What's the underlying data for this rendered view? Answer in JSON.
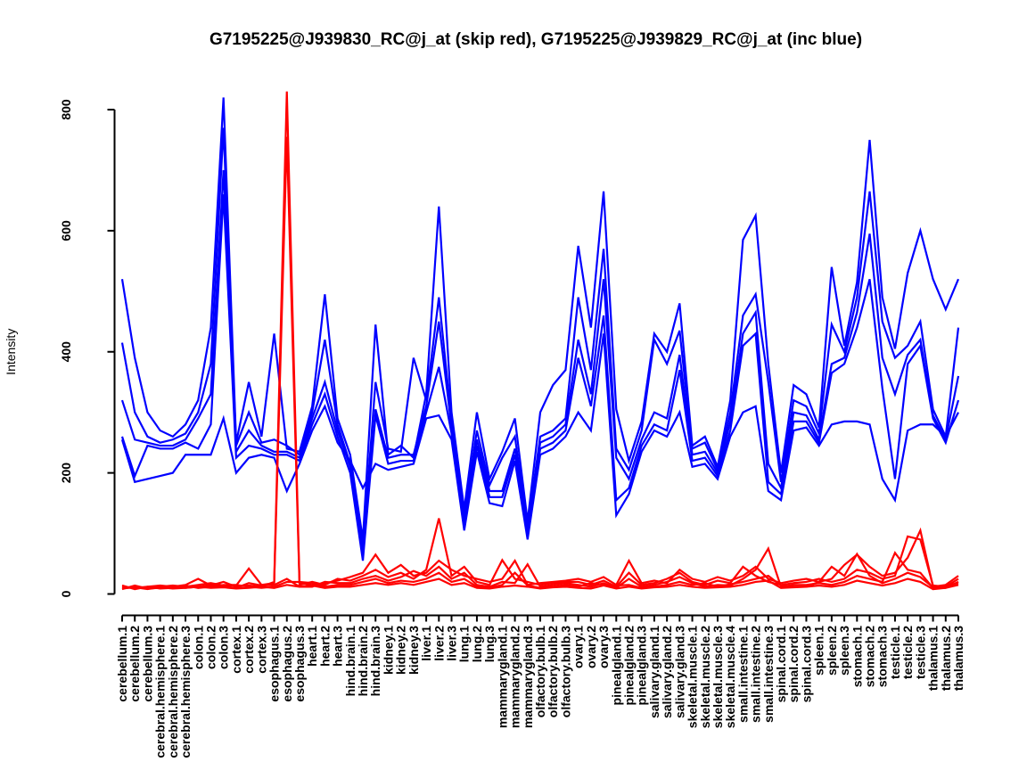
{
  "title": "G7195225@J939830_RC@j_at (skip red), G7195225@J939829_RC@j_at (inc blue)",
  "chart_data": {
    "type": "line",
    "title": "G7195225@J939830_RC@j_at (skip red), G7195225@J939829_RC@j_at (inc blue)",
    "xlabel": "",
    "ylabel": "Intensity",
    "ylim": [
      0,
      800
    ],
    "yticks": [
      0,
      200,
      400,
      600,
      800
    ],
    "grid": false,
    "legend_position": "none",
    "legend_note": "legend encoded in title: skip probe = red lines, inc probe = blue lines",
    "colors": {
      "skip": "#ff0000",
      "inc": "#0000ff"
    },
    "categories": [
      "cerebellum.1",
      "cerebellum.2",
      "cerebellum.3",
      "cerebral.hemisphere.1",
      "cerebral.hemisphere.2",
      "cerebral.hemisphere.3",
      "colon.1",
      "colon.2",
      "colon.3",
      "cortex.1",
      "cortex.2",
      "cortex.3",
      "esophagus.1",
      "esophagus.2",
      "esophagus.3",
      "heart.1",
      "heart.2",
      "heart.3",
      "hind.brain.1",
      "hind.brain.2",
      "hind.brain.3",
      "kidney.1",
      "kidney.2",
      "kidney.3",
      "liver.1",
      "liver.2",
      "liver.3",
      "lung.1",
      "lung.2",
      "lung.3",
      "mammarygland.1",
      "mammarygland.2",
      "mammarygland.3",
      "olfactory.bulb.1",
      "olfactory.bulb.2",
      "olfactory.bulb.3",
      "ovary.1",
      "ovary.2",
      "ovary.3",
      "pinealgland.1",
      "pinealgland.2",
      "pinealgland.3",
      "salivary.gland.1",
      "salivary.gland.2",
      "salivary.gland.3",
      "skeletal.muscle.1",
      "skeletal.muscle.2",
      "skeletal.muscle.3",
      "skeletal.muscle.4",
      "small.intestine.1",
      "small.intestine.2",
      "small.intestine.3",
      "spinal.cord.1",
      "spinal.cord.2",
      "spinal.cord.3",
      "spleen.1",
      "spleen.2",
      "spleen.3",
      "stomach.1",
      "stomach.2",
      "stomach.3",
      "testicle.1",
      "testicle.2",
      "testicle.3",
      "thalamus.1",
      "thalamus.2",
      "thalamus.3"
    ],
    "series": [
      {
        "name": "inc-line-1",
        "probe": "G7195225@J939829_RC@j_at",
        "color": "#0000ff",
        "values": [
          520,
          390,
          300,
          270,
          260,
          280,
          320,
          440,
          820,
          250,
          350,
          260,
          430,
          240,
          235,
          310,
          495,
          290,
          230,
          90,
          445,
          230,
          245,
          225,
          330,
          640,
          300,
          140,
          300,
          190,
          235,
          290,
          120,
          300,
          345,
          370,
          575,
          440,
          665,
          305,
          220,
          285,
          430,
          400,
          480,
          245,
          260,
          210,
          320,
          585,
          625,
          380,
          200,
          345,
          330,
          275,
          540,
          410,
          515,
          750,
          490,
          405,
          530,
          600,
          520,
          470,
          520
        ]
      },
      {
        "name": "inc-line-2",
        "probe": "G7195225@J939829_RC@j_at",
        "color": "#0000ff",
        "values": [
          415,
          300,
          260,
          250,
          255,
          265,
          300,
          380,
          770,
          245,
          300,
          250,
          255,
          245,
          230,
          300,
          420,
          280,
          215,
          75,
          350,
          240,
          235,
          390,
          320,
          490,
          285,
          130,
          270,
          180,
          225,
          260,
          110,
          260,
          270,
          290,
          490,
          370,
          570,
          240,
          205,
          270,
          420,
          380,
          435,
          240,
          250,
          205,
          300,
          460,
          495,
          350,
          185,
          320,
          310,
          265,
          445,
          400,
          490,
          665,
          450,
          390,
          410,
          450,
          305,
          260,
          440
        ]
      },
      {
        "name": "inc-line-3",
        "probe": "G7195225@J939829_RC@j_at",
        "color": "#0000ff",
        "values": [
          320,
          255,
          250,
          245,
          245,
          255,
          290,
          330,
          700,
          235,
          270,
          245,
          235,
          235,
          225,
          290,
          350,
          270,
          210,
          65,
          305,
          225,
          230,
          230,
          310,
          450,
          275,
          120,
          255,
          170,
          170,
          240,
          100,
          250,
          260,
          280,
          420,
          330,
          520,
          225,
          190,
          255,
          300,
          290,
          395,
          230,
          235,
          200,
          285,
          430,
          465,
          215,
          175,
          300,
          295,
          255,
          380,
          390,
          465,
          595,
          390,
          330,
          395,
          420,
          295,
          255,
          360
        ]
      },
      {
        "name": "inc-line-4",
        "probe": "G7195225@J939829_RC@j_at",
        "color": "#0000ff",
        "values": [
          260,
          195,
          245,
          240,
          240,
          250,
          240,
          280,
          660,
          225,
          245,
          240,
          230,
          230,
          220,
          280,
          330,
          260,
          200,
          55,
          295,
          215,
          220,
          220,
          300,
          375,
          265,
          110,
          245,
          160,
          160,
          230,
          95,
          240,
          250,
          270,
          390,
          310,
          460,
          155,
          175,
          245,
          280,
          270,
          370,
          220,
          225,
          195,
          270,
          410,
          430,
          185,
          165,
          285,
          285,
          250,
          365,
          380,
          440,
          520,
          340,
          190,
          380,
          410,
          290,
          250,
          320
        ]
      },
      {
        "name": "inc-line-5",
        "probe": "G7195225@J939829_RC@j_at",
        "color": "#0000ff",
        "values": [
          255,
          185,
          190,
          195,
          200,
          230,
          230,
          230,
          290,
          200,
          225,
          230,
          225,
          170,
          215,
          270,
          310,
          250,
          220,
          175,
          215,
          205,
          210,
          215,
          290,
          295,
          255,
          105,
          235,
          150,
          145,
          220,
          90,
          230,
          240,
          260,
          300,
          270,
          430,
          130,
          165,
          235,
          270,
          260,
          300,
          210,
          215,
          190,
          260,
          300,
          310,
          170,
          155,
          270,
          275,
          245,
          280,
          285,
          285,
          280,
          190,
          155,
          270,
          280,
          280,
          260,
          300
        ]
      },
      {
        "name": "skip-line-1",
        "probe": "G7195225@J939830_RC@j_at",
        "color": "#ff0000",
        "values": [
          12,
          10,
          12,
          14,
          12,
          15,
          25,
          14,
          20,
          12,
          14,
          12,
          20,
          830,
          18,
          15,
          18,
          22,
          28,
          35,
          65,
          35,
          48,
          30,
          35,
          55,
          40,
          30,
          25,
          20,
          25,
          55,
          15,
          18,
          20,
          22,
          25,
          20,
          28,
          15,
          55,
          18,
          22,
          18,
          40,
          25,
          20,
          28,
          22,
          30,
          45,
          25,
          18,
          22,
          25,
          20,
          25,
          48,
          65,
          45,
          30,
          35,
          60,
          105,
          12,
          15,
          30
        ]
      },
      {
        "name": "skip-line-2",
        "probe": "G7195225@J939830_RC@j_at",
        "color": "#ff0000",
        "values": [
          10,
          12,
          10,
          12,
          14,
          12,
          15,
          18,
          14,
          14,
          42,
          15,
          18,
          755,
          15,
          20,
          15,
          25,
          22,
          30,
          40,
          28,
          35,
          25,
          40,
          125,
          30,
          45,
          20,
          15,
          56,
          25,
          20,
          15,
          18,
          20,
          20,
          15,
          22,
          12,
          35,
          15,
          18,
          25,
          35,
          20,
          15,
          22,
          18,
          45,
          30,
          20,
          15,
          18,
          20,
          25,
          20,
          25,
          40,
          35,
          25,
          30,
          95,
          90,
          14,
          12,
          25
        ]
      },
      {
        "name": "skip-line-3",
        "probe": "G7195225@J939830_RC@j_at",
        "color": "#ff0000",
        "values": [
          8,
          14,
          9,
          10,
          12,
          10,
          12,
          15,
          12,
          10,
          18,
          14,
          15,
          25,
          12,
          12,
          20,
          18,
          18,
          25,
          30,
          22,
          28,
          38,
          30,
          45,
          25,
          35,
          15,
          12,
          20,
          18,
          49,
          12,
          15,
          18,
          15,
          12,
          18,
          10,
          25,
          12,
          15,
          20,
          28,
          18,
          12,
          15,
          14,
          25,
          40,
          75,
          12,
          15,
          15,
          18,
          15,
          20,
          30,
          25,
          20,
          68,
          40,
          35,
          10,
          10,
          20
        ]
      },
      {
        "name": "skip-line-4",
        "probe": "G7195225@J939830_RC@j_at",
        "color": "#ff0000",
        "values": [
          14,
          8,
          12,
          9,
          10,
          14,
          10,
          12,
          15,
          15,
          12,
          10,
          12,
          20,
          20,
          18,
          12,
          15,
          15,
          20,
          25,
          18,
          22,
          20,
          25,
          35,
          20,
          25,
          12,
          10,
          15,
          35,
          14,
          10,
          12,
          15,
          12,
          18,
          15,
          14,
          15,
          10,
          12,
          15,
          20,
          15,
          18,
          12,
          16,
          20,
          25,
          30,
          14,
          12,
          12,
          20,
          45,
          30,
          66,
          30,
          18,
          25,
          35,
          28,
          11,
          14,
          18
        ]
      },
      {
        "name": "skip-line-5",
        "probe": "G7195225@J939830_RC@j_at",
        "color": "#ff0000",
        "values": [
          9,
          11,
          8,
          11,
          9,
          10,
          12,
          10,
          11,
          9,
          10,
          12,
          10,
          15,
          12,
          14,
          10,
          12,
          12,
          15,
          18,
          15,
          18,
          15,
          20,
          25,
          15,
          18,
          10,
          9,
          12,
          14,
          12,
          9,
          11,
          12,
          10,
          9,
          14,
          9,
          12,
          9,
          11,
          12,
          15,
          12,
          10,
          11,
          12,
          15,
          20,
          22,
          10,
          11,
          12,
          14,
          12,
          15,
          22,
          18,
          14,
          18,
          25,
          20,
          8,
          10,
          15
        ]
      }
    ]
  }
}
